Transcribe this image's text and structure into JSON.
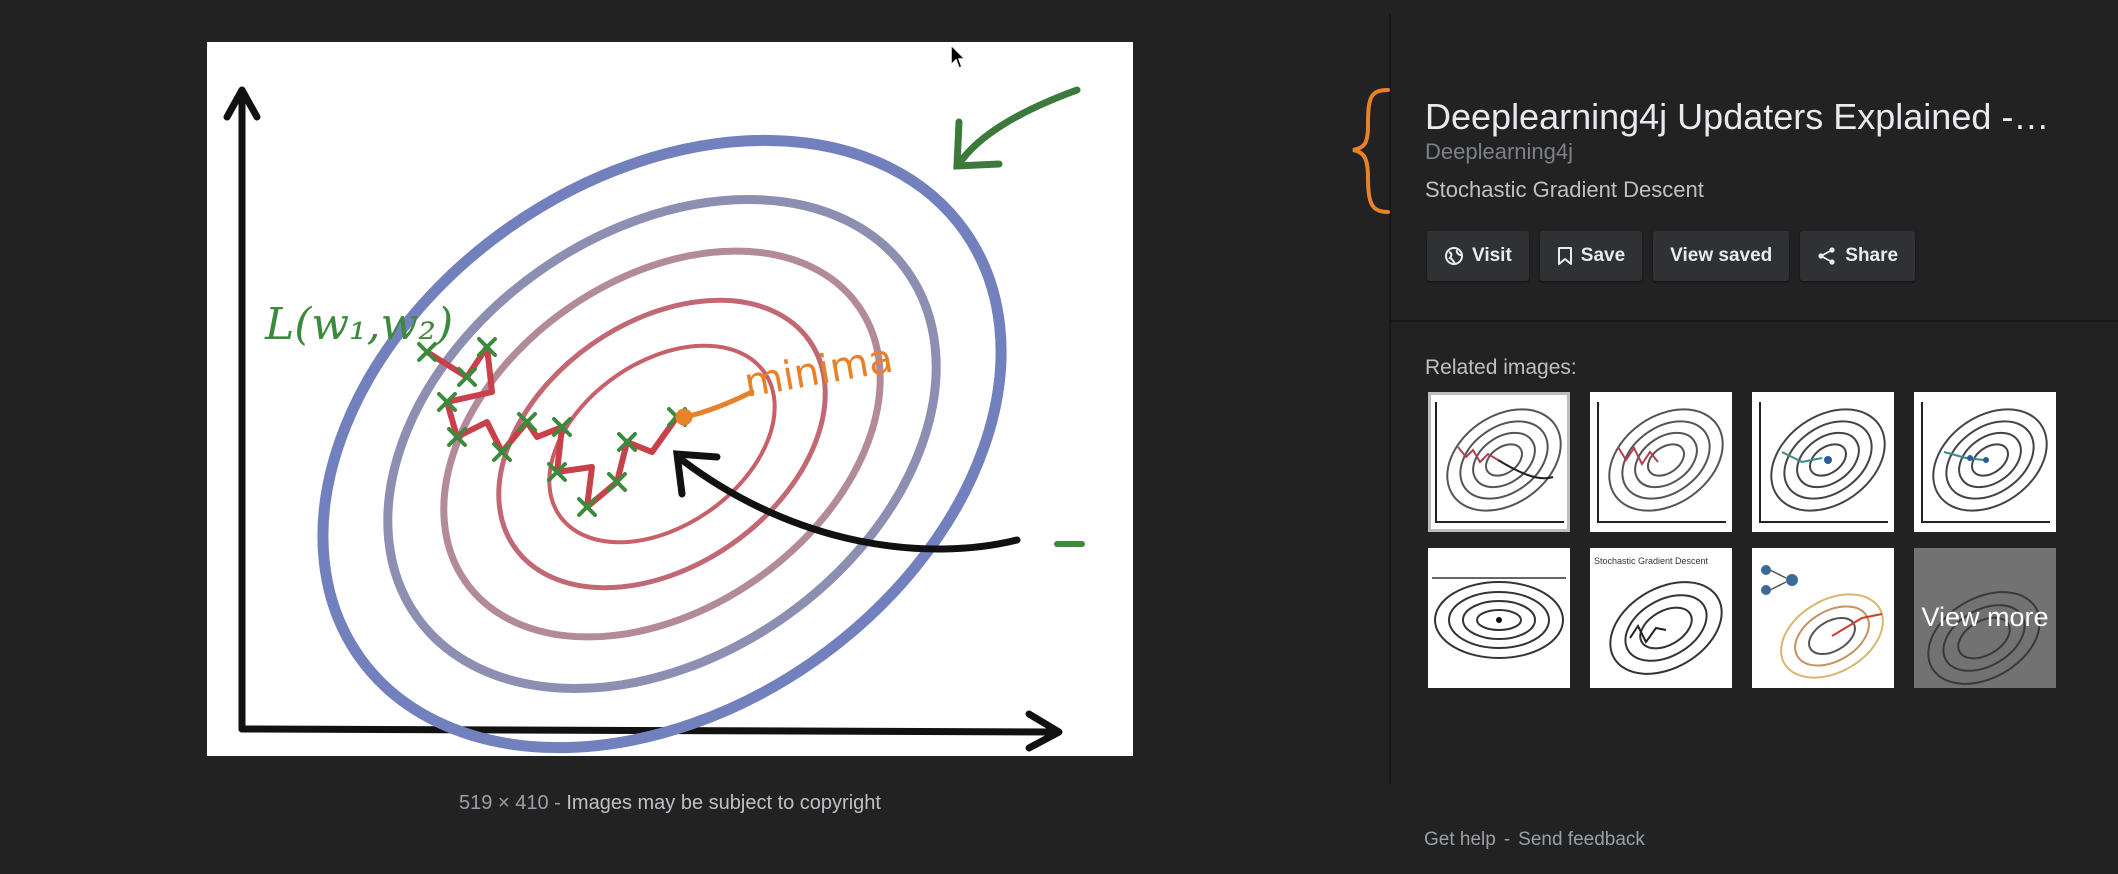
{
  "preview": {
    "handwritten_labels": {
      "loss_function": "L(w1, w2)",
      "minimum": "minima"
    }
  },
  "caption": {
    "dimensions": "519 × 410",
    "separator": "-",
    "notice": "Images may be subject to copyright"
  },
  "result": {
    "title": "Deeplearning4j Updaters Explained -…",
    "source": "Deeplearning4j",
    "subtitle": "Stochastic Gradient Descent"
  },
  "actions": [
    {
      "label": "Visit",
      "icon": "globe-icon"
    },
    {
      "label": "Save",
      "icon": "bookmark-icon"
    },
    {
      "label": "View saved",
      "icon": ""
    },
    {
      "label": "Share",
      "icon": "share-icon"
    }
  ],
  "related": {
    "label": "Related images:",
    "thumbs": [
      {
        "text": ""
      },
      {
        "text": ""
      },
      {
        "text": ""
      },
      {
        "text": ""
      },
      {
        "text": ""
      },
      {
        "text": "Stochastic Gradient Descent"
      },
      {
        "text": ""
      },
      {
        "text": ""
      }
    ],
    "view_more": "View more"
  },
  "footer": {
    "help": "Get help",
    "separator": "-",
    "feedback": "Send feedback"
  },
  "colors": {
    "background": "#222222",
    "panel_button": "#303134",
    "annotation_orange": "#e8822a",
    "ellipse_blue": "#7280bd",
    "ellipse_red": "#c8606a",
    "path_red": "#c8404a",
    "marker_green": "#3c8a3c"
  }
}
